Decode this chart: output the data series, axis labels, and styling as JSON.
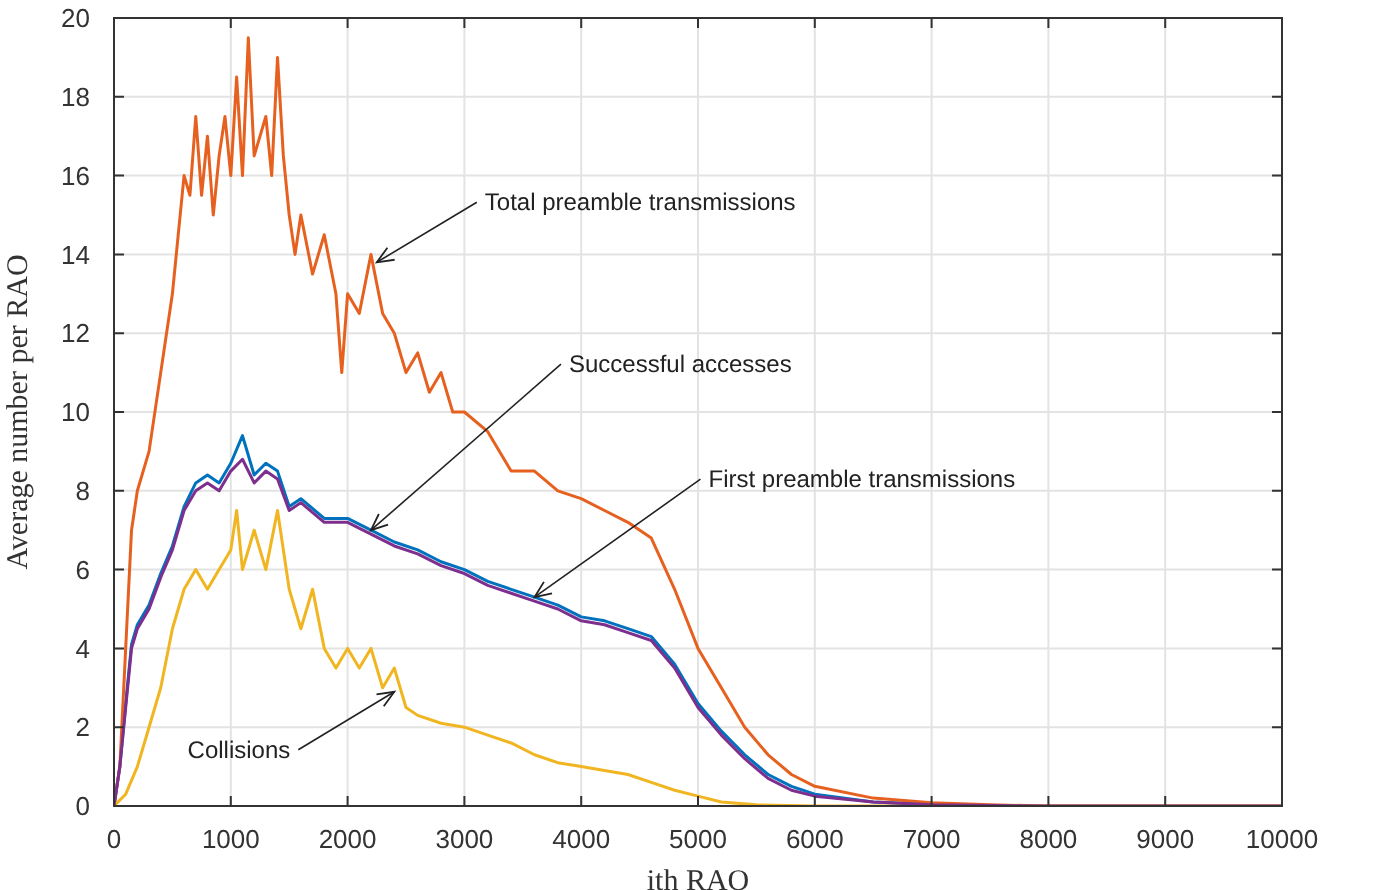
{
  "chart_data": {
    "type": "line",
    "xlabel": "ith RAO",
    "ylabel": "Average number per RAO",
    "xlim": [
      0,
      10000
    ],
    "xticks": [
      0,
      1000,
      2000,
      3000,
      4000,
      5000,
      6000,
      7000,
      8000,
      9000,
      10000
    ],
    "ylim": [
      0,
      20
    ],
    "yticks": [
      0,
      2,
      4,
      6,
      8,
      10,
      12,
      14,
      16,
      18,
      20
    ],
    "grid": true,
    "legend": false,
    "marker": "none",
    "line_style": "solid",
    "series": [
      {
        "color": "#0072bd",
        "x": [
          0,
          50,
          100,
          150,
          200,
          300,
          400,
          500,
          600,
          700,
          800,
          900,
          1000,
          1100,
          1200,
          1300,
          1400,
          1500,
          1600,
          1800,
          2000,
          2200,
          2400,
          2600,
          2800,
          3000,
          3200,
          3400,
          3600,
          3800,
          4000,
          4200,
          4400,
          4600,
          4800,
          5000,
          5200,
          5400,
          5600,
          5800,
          6000,
          6500,
          7000
        ],
        "values": [
          0,
          1,
          2.6,
          4.1,
          4.6,
          5.1,
          5.9,
          6.6,
          7.6,
          8.2,
          8.4,
          8.2,
          8.7,
          9.4,
          8.4,
          8.7,
          8.5,
          7.6,
          7.8,
          7.3,
          7.3,
          7,
          6.7,
          6.5,
          6.2,
          6,
          5.7,
          5.5,
          5.3,
          5.1,
          4.8,
          4.7,
          4.5,
          4.3,
          3.6,
          2.6,
          1.9,
          1.3,
          0.8,
          0.5,
          0.3,
          0.1,
          0.04
        ]
      },
      {
        "color": "#e6611f",
        "x": [
          0,
          50,
          100,
          150,
          200,
          300,
          400,
          500,
          550,
          600,
          650,
          700,
          750,
          800,
          850,
          900,
          950,
          1000,
          1050,
          1100,
          1150,
          1200,
          1300,
          1350,
          1400,
          1450,
          1500,
          1550,
          1600,
          1700,
          1800,
          1900,
          1950,
          2000,
          2100,
          2200,
          2300,
          2400,
          2500,
          2600,
          2700,
          2800,
          2900,
          3000,
          3200,
          3400,
          3600,
          3800,
          4000,
          4200,
          4400,
          4600,
          4800,
          5000,
          5200,
          5400,
          5600,
          5800,
          6000,
          6500,
          7000,
          7500,
          8000,
          10000
        ],
        "values": [
          0,
          1,
          4,
          7,
          8,
          9,
          11,
          13,
          14.5,
          16,
          15.5,
          17.5,
          15.5,
          17,
          15,
          16.5,
          17.5,
          16,
          18.5,
          16,
          19.5,
          16.5,
          17.5,
          16,
          19,
          16.5,
          15,
          14,
          15,
          13.5,
          14.5,
          13,
          11,
          13,
          12.5,
          14,
          12.5,
          12,
          11,
          11.5,
          10.5,
          11,
          10,
          10,
          9.5,
          8.5,
          8.5,
          8,
          7.8,
          7.5,
          7.2,
          6.8,
          5.5,
          4,
          3,
          2,
          1.3,
          0.8,
          0.5,
          0.2,
          0.08,
          0.03,
          0,
          0
        ]
      },
      {
        "color": "#f0b521",
        "x": [
          0,
          100,
          200,
          300,
          400,
          500,
          600,
          700,
          800,
          900,
          1000,
          1050,
          1100,
          1200,
          1300,
          1400,
          1500,
          1600,
          1700,
          1800,
          1900,
          2000,
          2100,
          2200,
          2300,
          2400,
          2500,
          2600,
          2800,
          3000,
          3200,
          3400,
          3600,
          3800,
          4000,
          4200,
          4400,
          4600,
          4800,
          5000,
          5200,
          5500,
          6000,
          10000
        ],
        "values": [
          0,
          0.3,
          1,
          2,
          3,
          4.5,
          5.5,
          6,
          5.5,
          6,
          6.5,
          7.5,
          6,
          7,
          6,
          7.5,
          5.5,
          4.5,
          5.5,
          4,
          3.5,
          4,
          3.5,
          4,
          3,
          3.5,
          2.5,
          2.3,
          2.1,
          2,
          1.8,
          1.6,
          1.3,
          1.1,
          1,
          0.9,
          0.8,
          0.6,
          0.4,
          0.25,
          0.1,
          0.03,
          0,
          0
        ]
      },
      {
        "color": "#7e2f8e",
        "x": [
          0,
          50,
          100,
          150,
          200,
          300,
          400,
          500,
          600,
          700,
          800,
          900,
          1000,
          1100,
          1200,
          1300,
          1400,
          1500,
          1600,
          1800,
          2000,
          2200,
          2400,
          2600,
          2800,
          3000,
          3200,
          3400,
          3600,
          3800,
          4000,
          4200,
          4400,
          4600,
          4800,
          5000,
          5200,
          5400,
          5600,
          5800,
          6000,
          6500,
          7000,
          7500,
          8000,
          10000
        ],
        "values": [
          0,
          1,
          2.5,
          4,
          4.5,
          5,
          5.8,
          6.5,
          7.5,
          8,
          8.2,
          8,
          8.5,
          8.8,
          8.2,
          8.5,
          8.3,
          7.5,
          7.7,
          7.2,
          7.2,
          6.9,
          6.6,
          6.4,
          6.1,
          5.9,
          5.6,
          5.4,
          5.2,
          5,
          4.7,
          4.6,
          4.4,
          4.2,
          3.5,
          2.5,
          1.8,
          1.2,
          0.7,
          0.4,
          0.25,
          0.1,
          0.03,
          0.01,
          0,
          0
        ]
      }
    ],
    "annotations": [
      {
        "text": "Total preamble transmissions",
        "x": 2250,
        "y": 13.8
      },
      {
        "text": "Successful accesses",
        "x": 2200,
        "y": 7
      },
      {
        "text": "First preamble transmissions",
        "x": 3600,
        "y": 5.3
      },
      {
        "text": "Collisions",
        "x": 2400,
        "y": 2.9
      }
    ]
  }
}
